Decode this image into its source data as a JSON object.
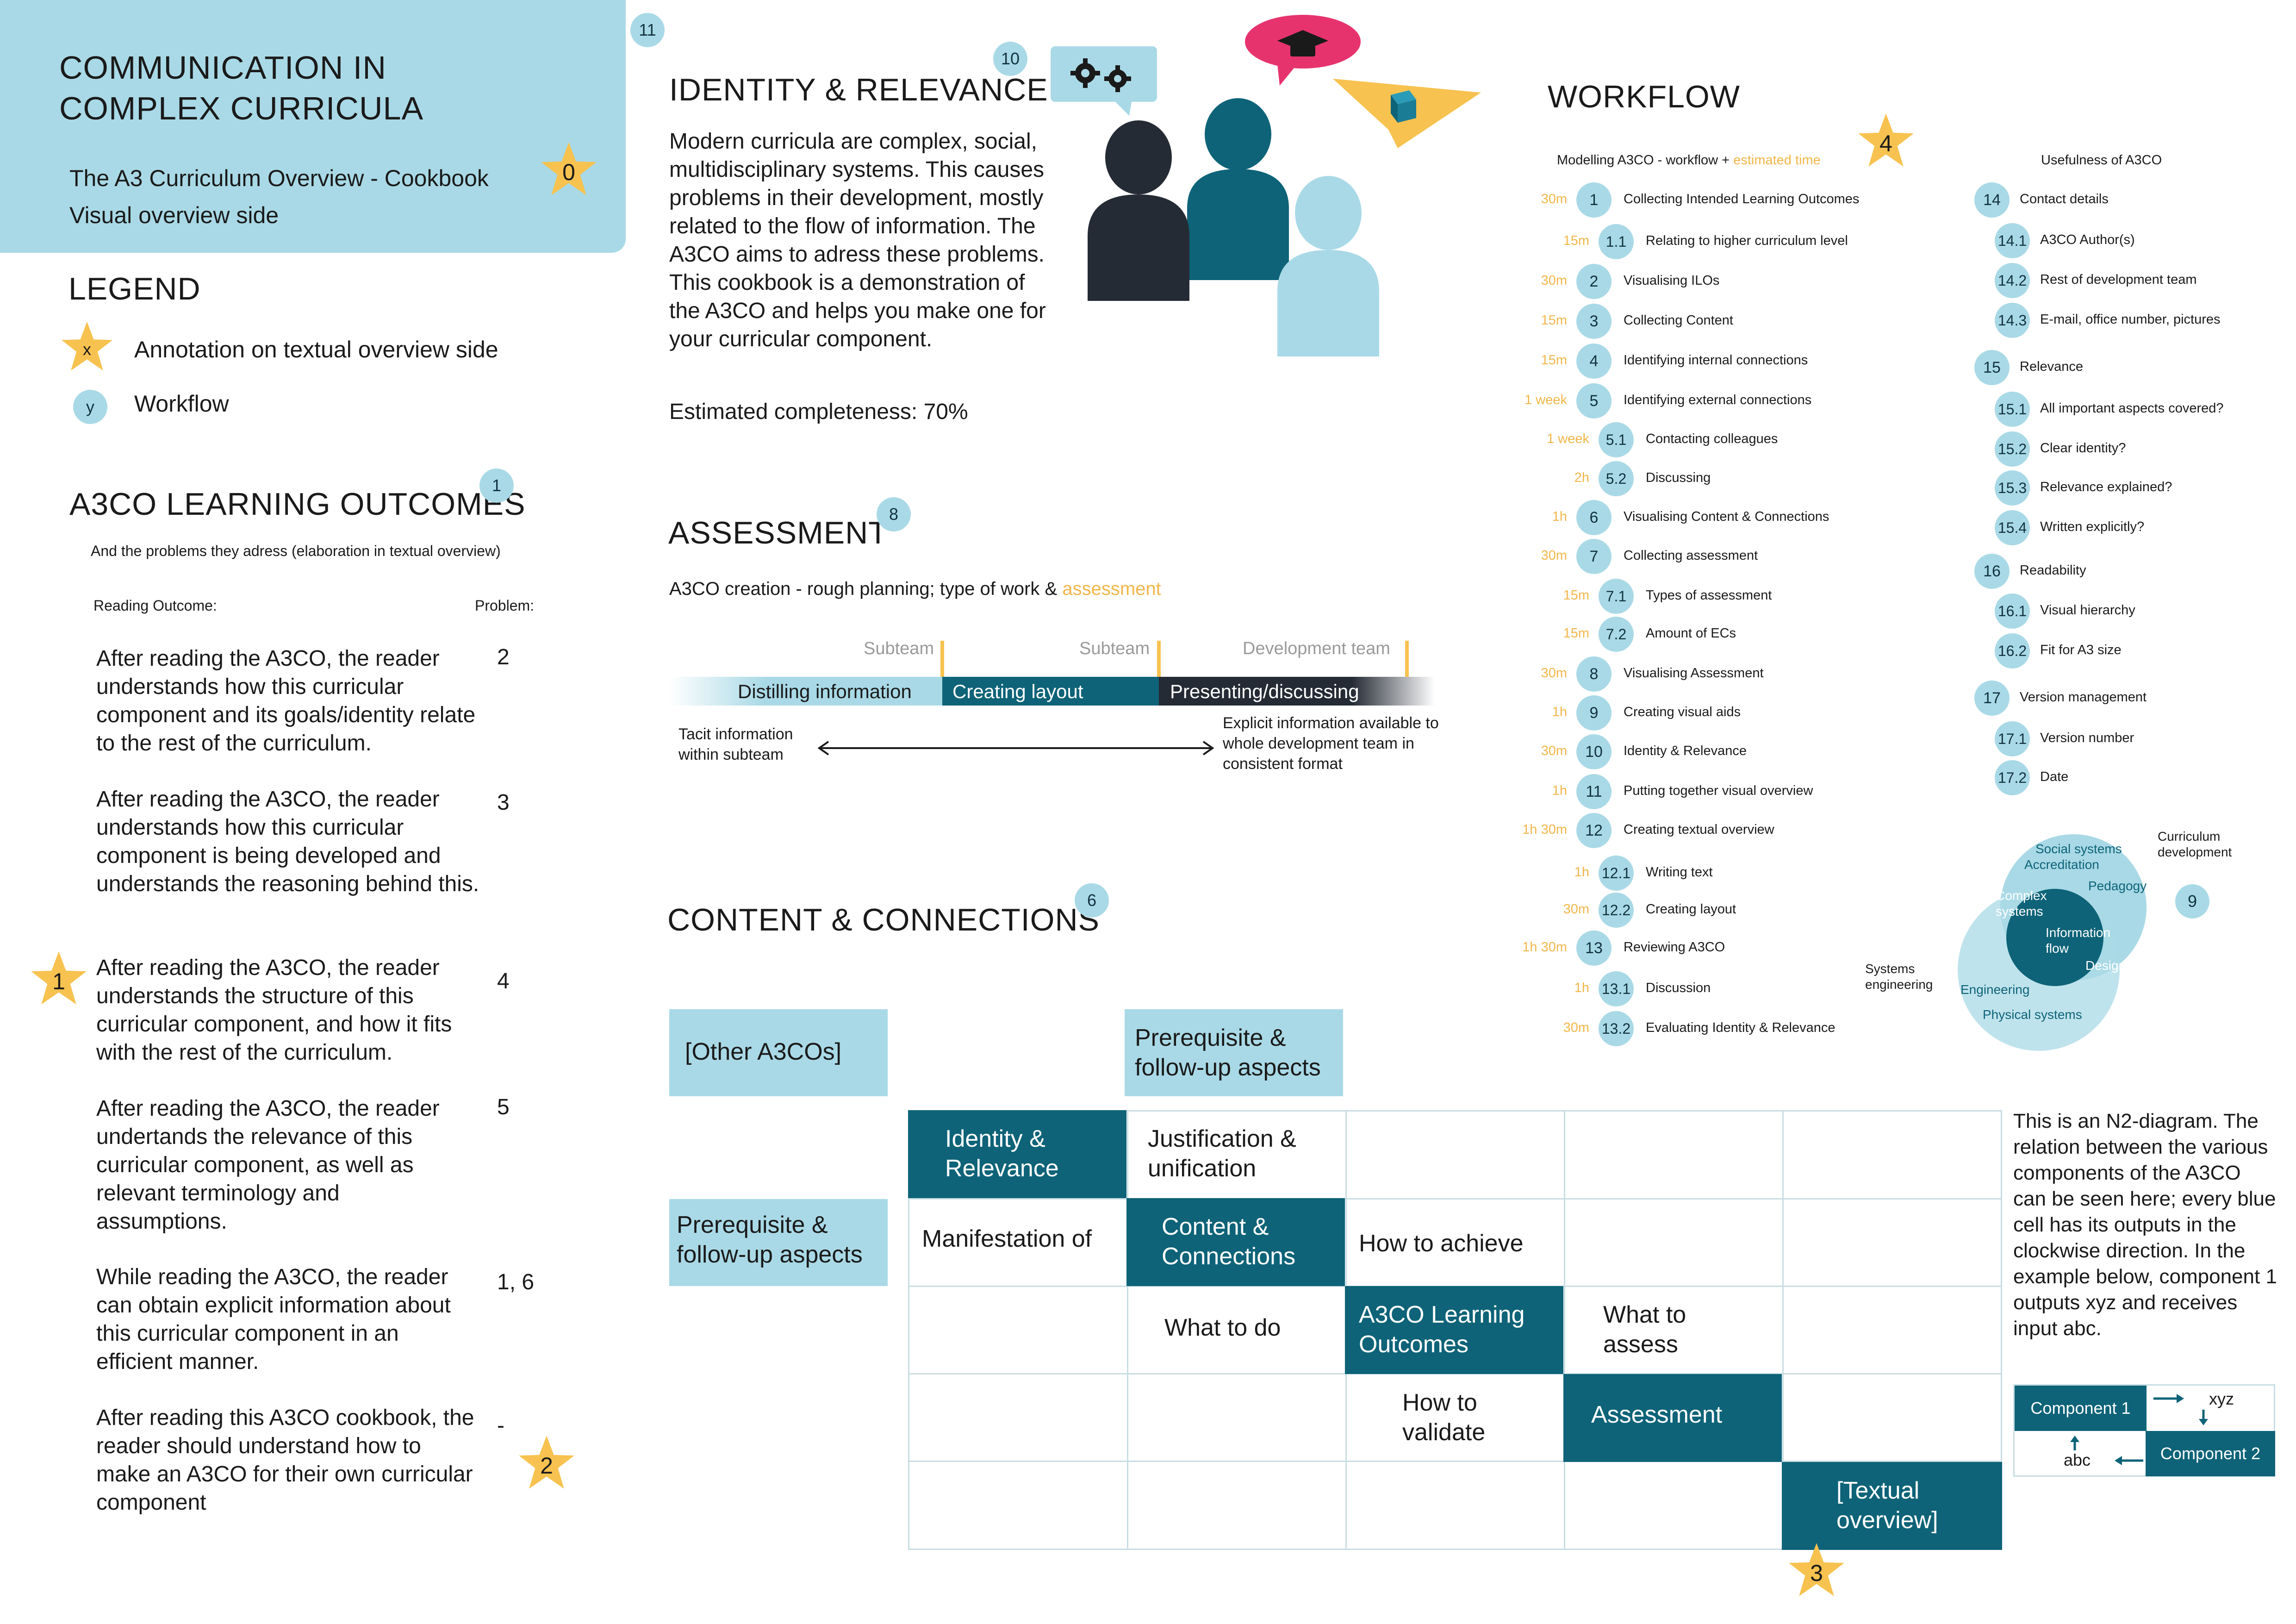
{
  "header": {
    "title_line1": "COMMUNICATION IN",
    "title_line2": "COMPLEX CURRICULA",
    "subtitle_line1": "The A3 Curriculum Overview - Cookbook",
    "subtitle_line2": "Visual overview side",
    "star_label": "0"
  },
  "legend": {
    "heading": "LEGEND",
    "star_symbol": "x",
    "star_text": "Annotation on textual overview side",
    "circle_symbol": "y",
    "circle_text": "Workflow"
  },
  "learning_outcomes": {
    "heading": "A3CO LEARNING OUTCOMES",
    "badge": "1",
    "subheading": "And the problems they adress (elaboration in textual overview)",
    "col_outcome": "Reading Outcome:",
    "col_problem": "Problem:",
    "items": [
      {
        "text": "After reading the A3CO, the reader understands how this curricular component and its goals/identity relate to the rest of the curriculum.",
        "problem": "2"
      },
      {
        "text": "After reading the A3CO, the reader understands how this curricular component is being developed and understands the reasoning behind this.",
        "problem": "3"
      },
      {
        "text": "After reading the A3CO, the reader understands the structure of this curricular component, and how it fits with the rest of the curriculum.",
        "problem": "4"
      },
      {
        "text": "After reading the A3CO, the reader undertands the relevance of this curricular component, as well as relevant terminology and assumptions.",
        "problem": "5"
      },
      {
        "text": "While reading the A3CO, the reader can obtain explicit information about this curricular component in an efficient manner.",
        "problem": "1, 6"
      },
      {
        "text": "After reading this A3CO cookbook, the reader should understand how to make an A3CO for their own curricular component",
        "problem": "-"
      }
    ],
    "star_1": "1",
    "star_2": "2"
  },
  "identity": {
    "badge_11": "11",
    "badge_10": "10",
    "heading": "IDENTITY & RELEVANCE",
    "body": "Modern curricula are complex, social, multidisciplinary systems. This causes problems in their development, mostly related to the flow of information. The A3CO aims to adress these problems. This cookbook is a demonstration of the A3CO and helps you make one for your curricular component.",
    "completeness": "Estimated completeness: 70%"
  },
  "assessment": {
    "heading": "ASSESSMENT",
    "badge": "8",
    "caption_prefix": "A3CO creation - rough planning; type of work & ",
    "caption_highlight": "assessment",
    "stage_owner_1": "Subteam",
    "stage_owner_2": "Subteam",
    "stage_owner_3": "Development team",
    "stage_1": "Distilling information",
    "stage_2": "Creating layout",
    "stage_3": "Presenting/discussing",
    "left_note": "Tacit information within subteam",
    "right_note": "Explicit information available to whole development team in consistent format"
  },
  "content": {
    "heading": "CONTENT & CONNECTIONS",
    "badge": "6",
    "other_a3cos": "[Other A3COs]",
    "prereq_top": "Prerequisite & follow-up aspects",
    "prereq_left": "Prerequisite & follow-up aspects",
    "diag": [
      "Identity & Relevance",
      "Content & Connections",
      "A3CO Learning Outcomes",
      "Assessment",
      "[Textual overview]"
    ],
    "cells": {
      "justification": "Justification & unification",
      "manifestation": "Manifestation of",
      "how_achieve": "How to achieve",
      "what_do": "What to do",
      "what_assess": "What to assess",
      "how_validate": "How to validate"
    },
    "star_3": "3",
    "n2_explanation": "This is an N2-diagram. The relation between the various components of the A3CO can be seen here; every blue cell has its outputs in the clockwise direction. In the example below, component 1 outputs xyz and receives input abc.",
    "example": {
      "comp1": "Component 1",
      "comp2": "Component 2",
      "out": "xyz",
      "in": "abc"
    }
  },
  "workflow": {
    "heading": "WORKFLOW",
    "star_label": "4",
    "col1_prefix": "Modelling A3CO - workflow + ",
    "col1_highlight": "estimated time",
    "col2_header": "Usefulness of A3CO",
    "steps": [
      {
        "time": "30m",
        "num": "1",
        "label": "Collecting Intended Learning Outcomes",
        "sub": false
      },
      {
        "time": "15m",
        "num": "1.1",
        "label": "Relating to higher curriculum level",
        "sub": true
      },
      {
        "time": "30m",
        "num": "2",
        "label": "Visualising ILOs",
        "sub": false
      },
      {
        "time": "15m",
        "num": "3",
        "label": "Collecting Content",
        "sub": false
      },
      {
        "time": "15m",
        "num": "4",
        "label": "Identifying internal connections",
        "sub": false
      },
      {
        "time": "1 week",
        "num": "5",
        "label": "Identifying external connections",
        "sub": false
      },
      {
        "time": "1 week",
        "num": "5.1",
        "label": "Contacting colleagues",
        "sub": true
      },
      {
        "time": "2h",
        "num": "5.2",
        "label": "Discussing",
        "sub": true
      },
      {
        "time": "1h",
        "num": "6",
        "label": "Visualising Content & Connections",
        "sub": false
      },
      {
        "time": "30m",
        "num": "7",
        "label": "Collecting assessment",
        "sub": false
      },
      {
        "time": "15m",
        "num": "7.1",
        "label": "Types of assessment",
        "sub": true
      },
      {
        "time": "15m",
        "num": "7.2",
        "label": "Amount of ECs",
        "sub": true
      },
      {
        "time": "30m",
        "num": "8",
        "label": "Visualising Assessment",
        "sub": false
      },
      {
        "time": "1h",
        "num": "9",
        "label": "Creating visual aids",
        "sub": false
      },
      {
        "time": "30m",
        "num": "10",
        "label": "Identity & Relevance",
        "sub": false
      },
      {
        "time": "1h",
        "num": "11",
        "label": "Putting together visual overview",
        "sub": false
      },
      {
        "time": "1h 30m",
        "num": "12",
        "label": "Creating textual overview",
        "sub": false
      },
      {
        "time": "1h",
        "num": "12.1",
        "label": "Writing text",
        "sub": true
      },
      {
        "time": "30m",
        "num": "12.2",
        "label": "Creating layout",
        "sub": true
      },
      {
        "time": "1h 30m",
        "num": "13",
        "label": "Reviewing A3CO",
        "sub": false
      },
      {
        "time": "1h",
        "num": "13.1",
        "label": "Discussion",
        "sub": true
      },
      {
        "time": "30m",
        "num": "13.2",
        "label": "Evaluating Identity & Relevance",
        "sub": true
      }
    ],
    "usefulness": [
      {
        "num": "14",
        "label": "Contact details",
        "sub": false
      },
      {
        "num": "14.1",
        "label": "A3CO Author(s)",
        "sub": true
      },
      {
        "num": "14.2",
        "label": "Rest of development team",
        "sub": true
      },
      {
        "num": "14.3",
        "label": "E-mail, office number, pictures",
        "sub": true
      },
      {
        "num": "15",
        "label": "Relevance",
        "sub": false
      },
      {
        "num": "15.1",
        "label": "All important aspects covered?",
        "sub": true
      },
      {
        "num": "15.2",
        "label": "Clear identity?",
        "sub": true
      },
      {
        "num": "15.3",
        "label": "Relevance explained?",
        "sub": true
      },
      {
        "num": "15.4",
        "label": "Written explicitly?",
        "sub": true
      },
      {
        "num": "16",
        "label": "Readability",
        "sub": false
      },
      {
        "num": "16.1",
        "label": "Visual hierarchy",
        "sub": true
      },
      {
        "num": "16.2",
        "label": "Fit for A3 size",
        "sub": true
      },
      {
        "num": "17",
        "label": "Version management",
        "sub": false
      },
      {
        "num": "17.1",
        "label": "Version number",
        "sub": true
      },
      {
        "num": "17.2",
        "label": "Date",
        "sub": true
      }
    ]
  },
  "venn": {
    "badge": "9",
    "curriculum_dev": "Curriculum development",
    "systems_eng": "Systems engineering",
    "social": "Social systems",
    "accreditation": "Accreditation",
    "pedagogy": "Pedagogy",
    "complex": "Complex systems",
    "info_flow": "Information flow",
    "designing": "Designing",
    "engineering": "Engineering",
    "physical": "Physical systems"
  },
  "colors": {
    "light_blue": "#a9d9e6",
    "teal": "#0e6378",
    "dark": "#252b35",
    "star_yellow": "#f7c24f",
    "orange_text": "#f2b64a",
    "pink": "#e6336e"
  }
}
